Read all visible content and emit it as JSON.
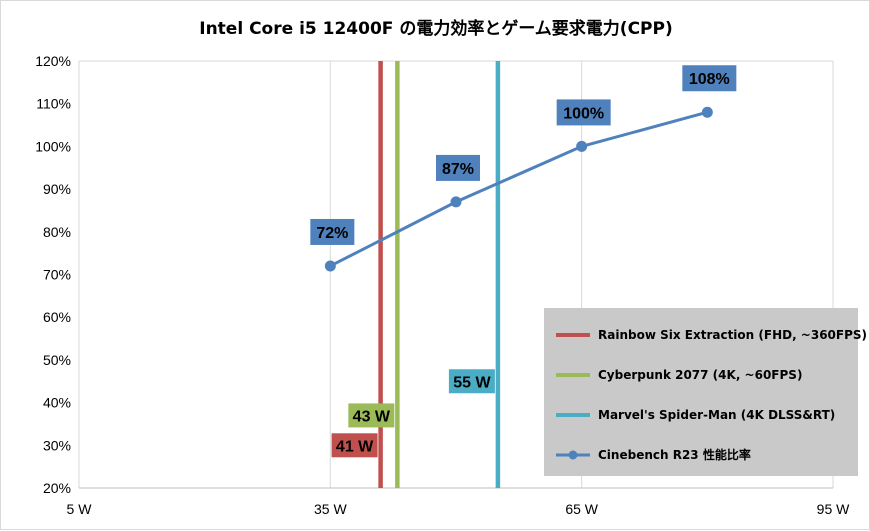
{
  "chart_data": {
    "type": "line",
    "title": "Intel Core i5 12400F の電力効率とゲーム要求電力(CPP)",
    "xlabel": "",
    "ylabel": "",
    "xlim": [
      5,
      95
    ],
    "ylim": [
      20,
      120
    ],
    "x_ticks": [
      5,
      35,
      65,
      95
    ],
    "x_tick_labels": [
      "5 W",
      "35 W",
      "65 W",
      "95 W"
    ],
    "y_ticks": [
      20,
      30,
      40,
      50,
      60,
      70,
      80,
      90,
      100,
      110,
      120
    ],
    "y_tick_labels": [
      "20%",
      "30%",
      "40%",
      "50%",
      "60%",
      "70%",
      "80%",
      "90%",
      "100%",
      "110%",
      "120%"
    ],
    "grid": "vertical",
    "legend_position": "bottom-right",
    "series": [
      {
        "name": "Cinebench R23 性能比率",
        "kind": "line",
        "color": "#4f81bd",
        "x": [
          35,
          50,
          65,
          80
        ],
        "y": [
          72,
          87,
          100,
          108
        ],
        "labels": [
          "72%",
          "87%",
          "100%",
          "108%"
        ]
      }
    ],
    "reference_lines": [
      {
        "name": "Rainbow Six Extraction (FHD, ~360FPS)",
        "x": 41,
        "label": "41 W",
        "label_y": 30,
        "color": "#c0504d"
      },
      {
        "name": "Cyberpunk 2077 (4K, ~60FPS)",
        "x": 43,
        "label": "43 W",
        "label_y": 37,
        "color": "#9bbb59"
      },
      {
        "name": "Marvel's Spider-Man (4K DLSS&RT)",
        "x": 55,
        "label": "55 W",
        "label_y": 45,
        "color": "#4bacc6"
      }
    ]
  }
}
